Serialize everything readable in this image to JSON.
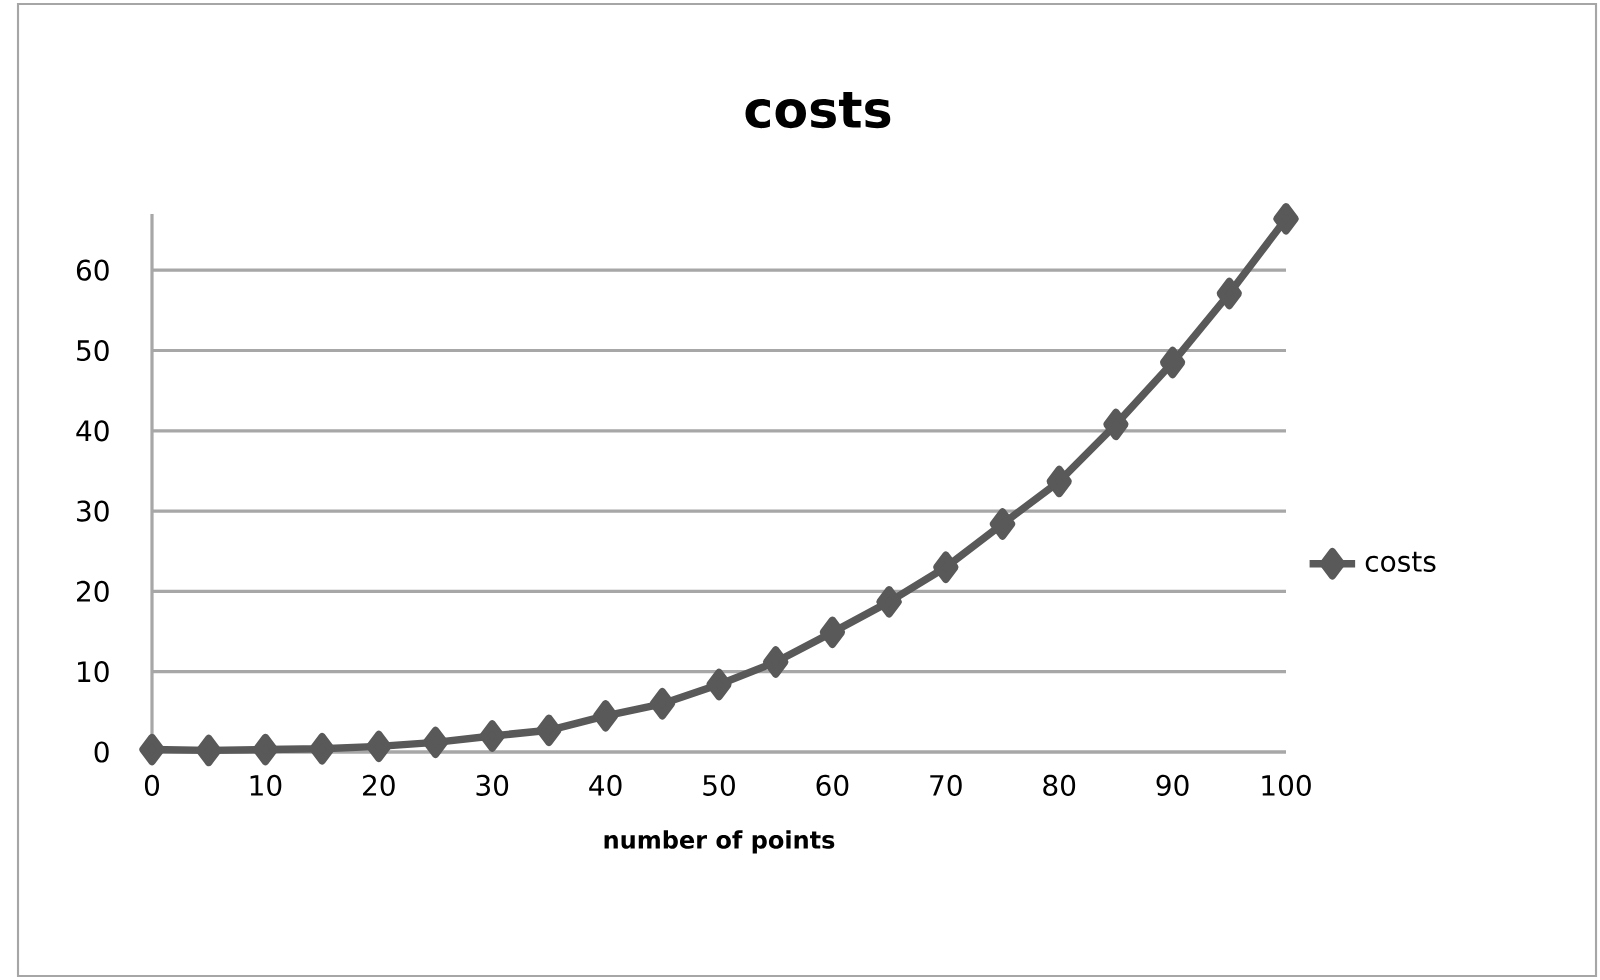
{
  "chart_data": {
    "type": "line",
    "title": "costs",
    "xlabel": "number of points",
    "x": [
      0,
      5,
      10,
      15,
      20,
      25,
      30,
      35,
      40,
      45,
      50,
      55,
      60,
      65,
      70,
      75,
      80,
      85,
      90,
      95,
      100
    ],
    "series": [
      {
        "name": "costs",
        "color": "#595959",
        "values": [
          0.3,
          0.2,
          0.3,
          0.4,
          0.7,
          1.2,
          2,
          2.7,
          4.5,
          6,
          8.4,
          11.2,
          14.9,
          18.7,
          23,
          28.4,
          33.7,
          40.8,
          48.5,
          57.1,
          66.4
        ]
      }
    ],
    "xlim": [
      0,
      100
    ],
    "xticks": [
      0,
      10,
      20,
      30,
      40,
      50,
      60,
      70,
      80,
      90,
      100
    ],
    "ylim": [
      0,
      67
    ],
    "yticks": [
      0,
      10,
      20,
      30,
      40,
      50,
      60
    ],
    "grid": "y",
    "legend": "right",
    "marker": "diamond",
    "line_style": "solid"
  }
}
